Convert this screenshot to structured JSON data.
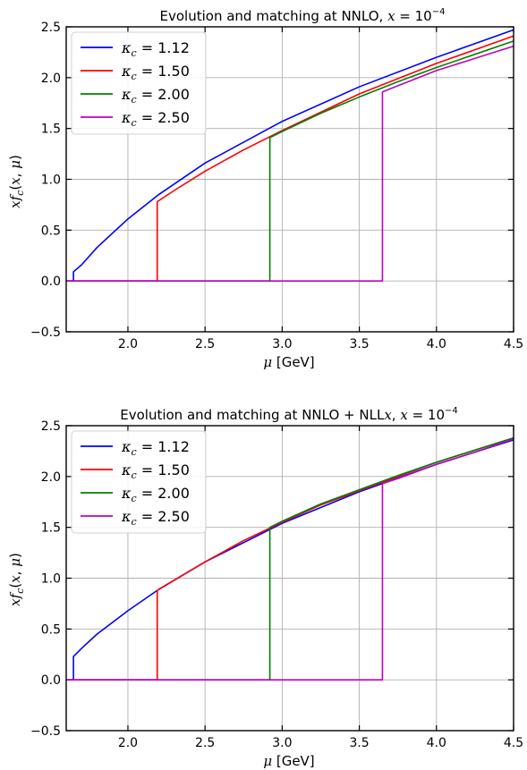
{
  "chart_data": [
    {
      "type": "line",
      "title": {
        "prefix": "Evolution and matching at NNLO, ",
        "var": "x",
        "eq": " = 10",
        "exp": "−4"
      },
      "xlabel": {
        "var": "μ",
        "unit": " [GeV]"
      },
      "ylabel": {
        "a": "x",
        "b": "f",
        "sub": "c",
        "c": "(",
        "d": "x",
        "e": ", ",
        "f": "μ",
        "g": ")"
      },
      "xlim": [
        1.6,
        4.5
      ],
      "ylim": [
        -0.5,
        2.5
      ],
      "xticks": [
        "2.0",
        "2.5",
        "3.0",
        "3.5",
        "4.0",
        "4.5"
      ],
      "yticks": [
        "−0.5",
        "0.0",
        "0.5",
        "1.0",
        "1.5",
        "2.0",
        "2.5"
      ],
      "grid": true,
      "legend_position": "top-left",
      "series": [
        {
          "name": "1.12",
          "color": "#0000ff",
          "threshold": 1.647,
          "jump_to": 0.09,
          "x": [
            1.647,
            1.7,
            1.8,
            2.0,
            2.2,
            2.5,
            3.0,
            3.5,
            4.0,
            4.5
          ],
          "y": [
            0.09,
            0.16,
            0.33,
            0.61,
            0.85,
            1.16,
            1.57,
            1.91,
            2.2,
            2.47
          ]
        },
        {
          "name": "1.50",
          "color": "#ff0000",
          "threshold": 2.19,
          "jump_to": 0.78,
          "x": [
            2.19,
            2.3,
            2.5,
            2.75,
            3.0,
            3.25,
            3.5,
            4.0,
            4.5
          ],
          "y": [
            0.78,
            0.89,
            1.08,
            1.29,
            1.48,
            1.66,
            1.84,
            2.14,
            2.41
          ]
        },
        {
          "name": "2.00",
          "color": "#008000",
          "threshold": 2.92,
          "jump_to": 1.41,
          "x": [
            2.92,
            3.0,
            3.25,
            3.5,
            3.75,
            4.0,
            4.25,
            4.5
          ],
          "y": [
            1.41,
            1.47,
            1.65,
            1.81,
            1.96,
            2.1,
            2.23,
            2.36
          ]
        },
        {
          "name": "2.50",
          "color": "#c000c0",
          "threshold": 3.65,
          "jump_to": 1.86,
          "x": [
            3.65,
            3.75,
            4.0,
            4.25,
            4.5
          ],
          "y": [
            1.86,
            1.92,
            2.07,
            2.19,
            2.31
          ]
        }
      ]
    },
    {
      "type": "line",
      "title": {
        "prefix": "Evolution and matching at NNLO + NLL",
        "var": "x",
        "eq": ", ",
        "var2": "x",
        "eq2": " = 10",
        "exp": "−4"
      },
      "xlabel": {
        "var": "μ",
        "unit": " [GeV]"
      },
      "ylabel": {
        "a": "x",
        "b": "f",
        "sub": "c",
        "c": "(",
        "d": "x",
        "e": ", ",
        "f": "μ",
        "g": ")"
      },
      "xlim": [
        1.6,
        4.5
      ],
      "ylim": [
        -0.5,
        2.5
      ],
      "xticks": [
        "2.0",
        "2.5",
        "3.0",
        "3.5",
        "4.0",
        "4.5"
      ],
      "yticks": [
        "−0.5",
        "0.0",
        "0.5",
        "1.0",
        "1.5",
        "2.0",
        "2.5"
      ],
      "grid": true,
      "legend_position": "top-left",
      "series": [
        {
          "name": "1.12",
          "color": "#0000ff",
          "threshold": 1.647,
          "jump_to": 0.23,
          "x": [
            1.647,
            1.7,
            1.8,
            2.0,
            2.2,
            2.5,
            3.0,
            3.5,
            4.0,
            4.5
          ],
          "y": [
            0.23,
            0.31,
            0.45,
            0.68,
            0.89,
            1.16,
            1.54,
            1.85,
            2.12,
            2.36
          ]
        },
        {
          "name": "1.50",
          "color": "#ff0000",
          "threshold": 2.19,
          "jump_to": 0.88,
          "x": [
            2.19,
            2.3,
            2.5,
            2.75,
            3.0,
            3.25,
            3.5,
            4.0,
            4.5
          ],
          "y": [
            0.88,
            0.98,
            1.16,
            1.37,
            1.55,
            1.72,
            1.86,
            2.14,
            2.38
          ]
        },
        {
          "name": "2.00",
          "color": "#008000",
          "threshold": 2.92,
          "jump_to": 1.5,
          "x": [
            2.92,
            3.0,
            3.25,
            3.5,
            3.75,
            4.0,
            4.25,
            4.5
          ],
          "y": [
            1.5,
            1.56,
            1.73,
            1.87,
            2.01,
            2.14,
            2.26,
            2.38
          ]
        },
        {
          "name": "2.50",
          "color": "#c000c0",
          "threshold": 3.65,
          "jump_to": 1.93,
          "x": [
            3.65,
            3.75,
            4.0,
            4.25,
            4.5
          ],
          "y": [
            1.93,
            1.98,
            2.12,
            2.24,
            2.37
          ]
        }
      ]
    }
  ],
  "legend_symbol": "κ",
  "legend_sub": "c",
  "legend_eq": " = "
}
